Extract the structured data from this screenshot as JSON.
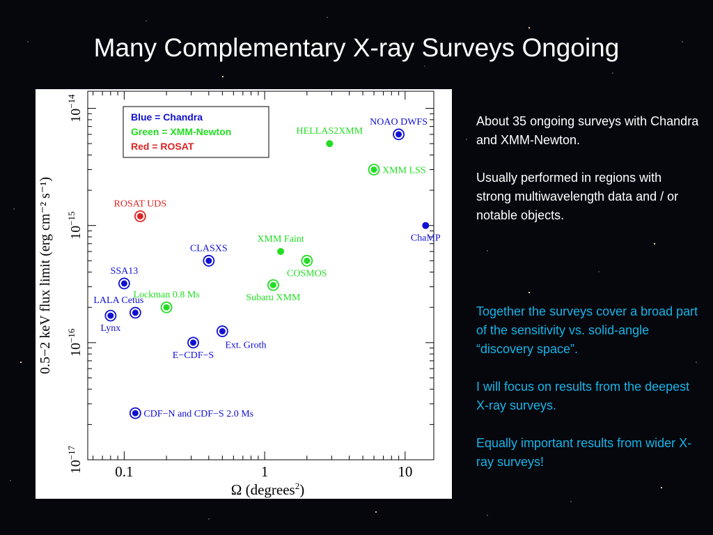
{
  "slide": {
    "title": "Many Complementary X-ray Surveys Ongoing",
    "text_block_1": [
      "About 35 ongoing surveys with Chandra and XMM-Newton.",
      "Usually performed in regions with strong multiwavelength data and / or notable objects."
    ],
    "text_block_2": [
      "Together the surveys cover a broad part of the sensitivity vs. solid-angle “discovery space”.",
      "I will focus on results from the deepest X-ray surveys.",
      "Equally important results from wider X-ray surveys!"
    ]
  },
  "colors": {
    "chandra": "#1010d0",
    "xmm": "#22dd22",
    "rosat": "#dd2222",
    "cyan_text": "#19b4e6"
  },
  "chart_data": {
    "type": "scatter",
    "x_scale": "log",
    "y_scale": "log",
    "xlim": [
      0.055,
      16
    ],
    "ylim": [
      1e-17,
      1.4e-14
    ],
    "xlabel_text": "Ω (degrees",
    "xlabel_sup": "2",
    "xlabel_end": ")",
    "ylabel": "0.5−2 keV flux limit (erg cm⁻² s⁻¹)",
    "x_ticks": [
      {
        "value": 0.1,
        "label": "0.1"
      },
      {
        "value": 1,
        "label": "1"
      },
      {
        "value": 10,
        "label": "10"
      }
    ],
    "y_ticks": [
      {
        "value": 1e-17,
        "base": "10",
        "exp": "−17"
      },
      {
        "value": 1e-16,
        "base": "10",
        "exp": "−16"
      },
      {
        "value": 1e-15,
        "base": "10",
        "exp": "−15"
      },
      {
        "value": 1e-14,
        "base": "10",
        "exp": "−14"
      }
    ],
    "legend": [
      {
        "text": "Blue = Chandra",
        "color": "#1010d0"
      },
      {
        "text": "Green = XMM-Newton",
        "color": "#22dd22"
      },
      {
        "text": "Red = ROSAT",
        "color": "#dd2222"
      }
    ],
    "legend_position": "top-center",
    "points": [
      {
        "label": "NOAO DWFS",
        "x": 9.0,
        "y": 6e-15,
        "mission": "chandra",
        "ring": true,
        "label_pos": "above"
      },
      {
        "label": "ChaMP",
        "x": 14.0,
        "y": 1e-15,
        "mission": "chandra",
        "ring": false,
        "label_pos": "below"
      },
      {
        "label": "CLASXS",
        "x": 0.4,
        "y": 5e-16,
        "mission": "chandra",
        "ring": true,
        "label_pos": "above"
      },
      {
        "label": "SSA13",
        "x": 0.1,
        "y": 3.2e-16,
        "mission": "chandra",
        "ring": true,
        "label_pos": "above"
      },
      {
        "label": "LALA Cetus",
        "x": 0.12,
        "y": 1.8e-16,
        "mission": "chandra",
        "ring": true,
        "label_pos": "above-left"
      },
      {
        "label": "Lynx",
        "x": 0.08,
        "y": 1.7e-16,
        "mission": "chandra",
        "ring": true,
        "label_pos": "below"
      },
      {
        "label": "E−CDF−S",
        "x": 0.31,
        "y": 1e-16,
        "mission": "chandra",
        "ring": true,
        "label_pos": "below"
      },
      {
        "label": "Ext. Groth",
        "x": 0.5,
        "y": 1.25e-16,
        "mission": "chandra",
        "ring": true,
        "label_pos": "below-right"
      },
      {
        "label": "CDF−N and CDF−S 2.0 Ms",
        "x": 0.12,
        "y": 2.5e-17,
        "mission": "chandra",
        "ring": true,
        "label_pos": "right"
      },
      {
        "label": "HELLAS2XMM",
        "x": 2.9,
        "y": 5e-15,
        "mission": "xmm",
        "ring": false,
        "label_pos": "above"
      },
      {
        "label": "XMM LSS",
        "x": 6.0,
        "y": 3e-15,
        "mission": "xmm",
        "ring": true,
        "label_pos": "right"
      },
      {
        "label": "XMM Faint",
        "x": 1.3,
        "y": 6e-16,
        "mission": "xmm",
        "ring": false,
        "label_pos": "above"
      },
      {
        "label": "COSMOS",
        "x": 2.0,
        "y": 5e-16,
        "mission": "xmm",
        "ring": true,
        "label_pos": "below"
      },
      {
        "label": "Subaru XMM",
        "x": 1.15,
        "y": 3.1e-16,
        "mission": "xmm",
        "ring": true,
        "label_pos": "below"
      },
      {
        "label": "Lockman 0.8 Ms",
        "x": 0.2,
        "y": 2e-16,
        "mission": "xmm",
        "ring": true,
        "label_pos": "above"
      },
      {
        "label": "ROSAT UDS",
        "x": 0.13,
        "y": 1.2e-15,
        "mission": "rosat",
        "ring": true,
        "label_pos": "above"
      }
    ]
  }
}
